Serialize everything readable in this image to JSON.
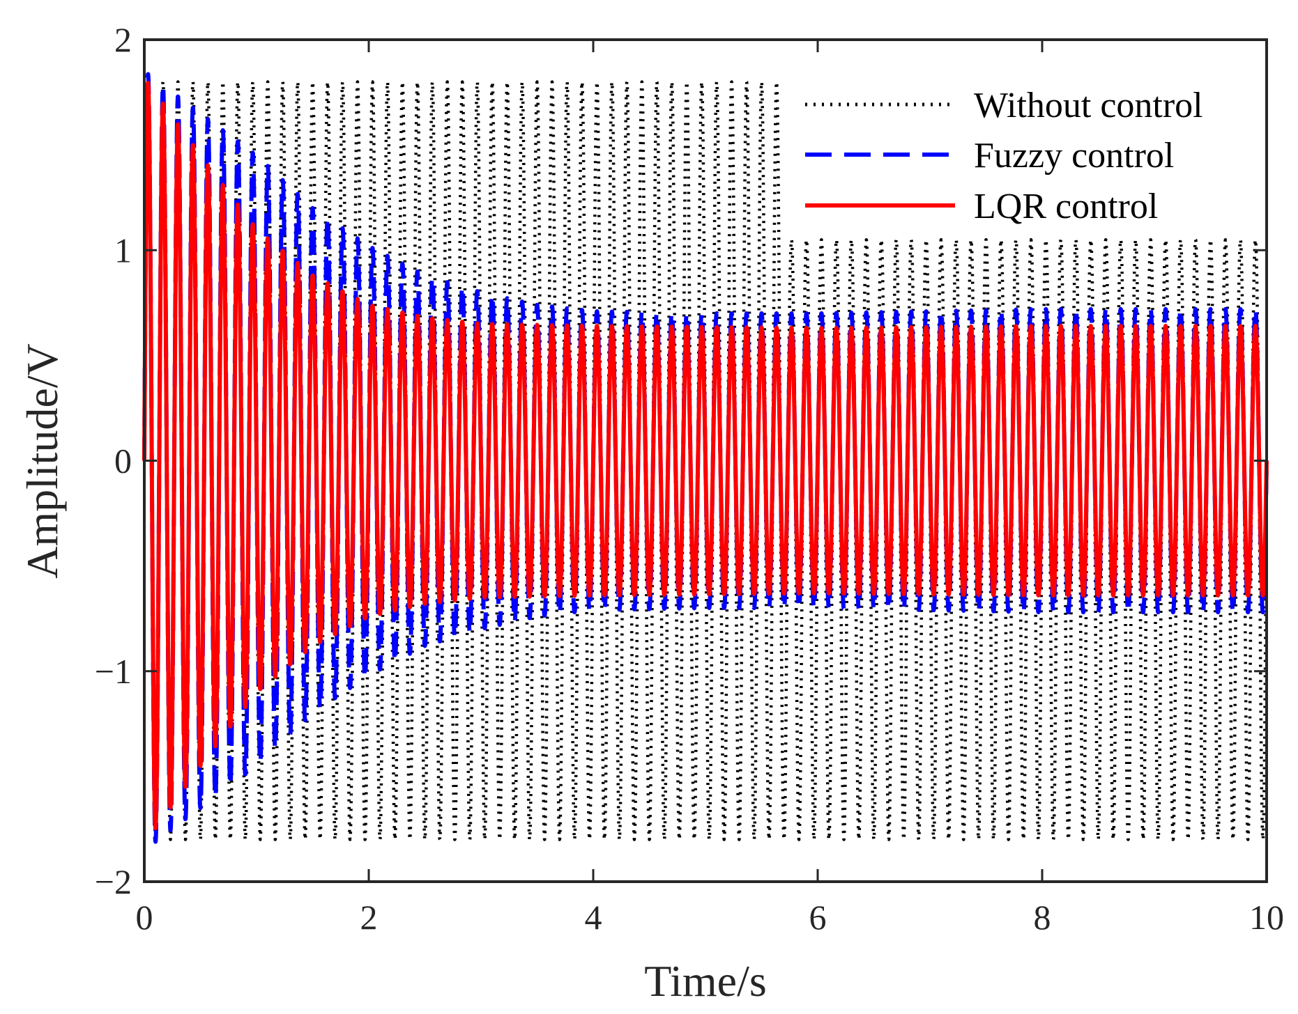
{
  "chart_data": {
    "type": "line",
    "title": "",
    "xlabel": "Time/s",
    "ylabel": "Amplitude/V",
    "xlim": [
      0,
      10
    ],
    "ylim": [
      -2,
      2
    ],
    "x_ticks": [
      0,
      2,
      4,
      6,
      8,
      10
    ],
    "x_tick_labels": [
      "0",
      "2",
      "4",
      "6",
      "8",
      "10"
    ],
    "y_ticks": [
      2,
      1,
      0,
      -1,
      -2
    ],
    "y_tick_labels": [
      "2",
      "1",
      "0",
      "−1",
      "−2"
    ],
    "grid": false,
    "box": true,
    "legend_position": "top-right",
    "series": [
      {
        "name": "Without control",
        "color": "#000000",
        "style": "dotted",
        "frequency_hz": 7.5,
        "envelope_points": [
          [
            0,
            1.8
          ],
          [
            5.7,
            1.8
          ],
          [
            5.75,
            1.05
          ],
          [
            10,
            1.05
          ]
        ],
        "lower_envelope_points": [
          [
            0,
            -1.8
          ],
          [
            10,
            -1.8
          ]
        ]
      },
      {
        "name": "Fuzzy control",
        "color": "#0000FF",
        "style": "dashed",
        "frequency_hz": 7.5,
        "envelope_points": [
          [
            0,
            1.85
          ],
          [
            0.5,
            1.65
          ],
          [
            1,
            1.45
          ],
          [
            1.5,
            1.2
          ],
          [
            2,
            1.02
          ],
          [
            2.5,
            0.88
          ],
          [
            3,
            0.8
          ],
          [
            3.5,
            0.74
          ],
          [
            4,
            0.71
          ],
          [
            5,
            0.7
          ],
          [
            6,
            0.7
          ],
          [
            8,
            0.72
          ],
          [
            10,
            0.72
          ]
        ]
      },
      {
        "name": "LQR control",
        "color": "#FF0000",
        "style": "solid",
        "frequency_hz": 7.5,
        "envelope_points": [
          [
            0,
            1.82
          ],
          [
            0.5,
            1.45
          ],
          [
            1,
            1.1
          ],
          [
            1.5,
            0.88
          ],
          [
            2,
            0.74
          ],
          [
            2.5,
            0.68
          ],
          [
            3,
            0.65
          ],
          [
            4,
            0.64
          ],
          [
            6,
            0.63
          ],
          [
            8,
            0.64
          ],
          [
            10,
            0.64
          ]
        ]
      }
    ]
  }
}
